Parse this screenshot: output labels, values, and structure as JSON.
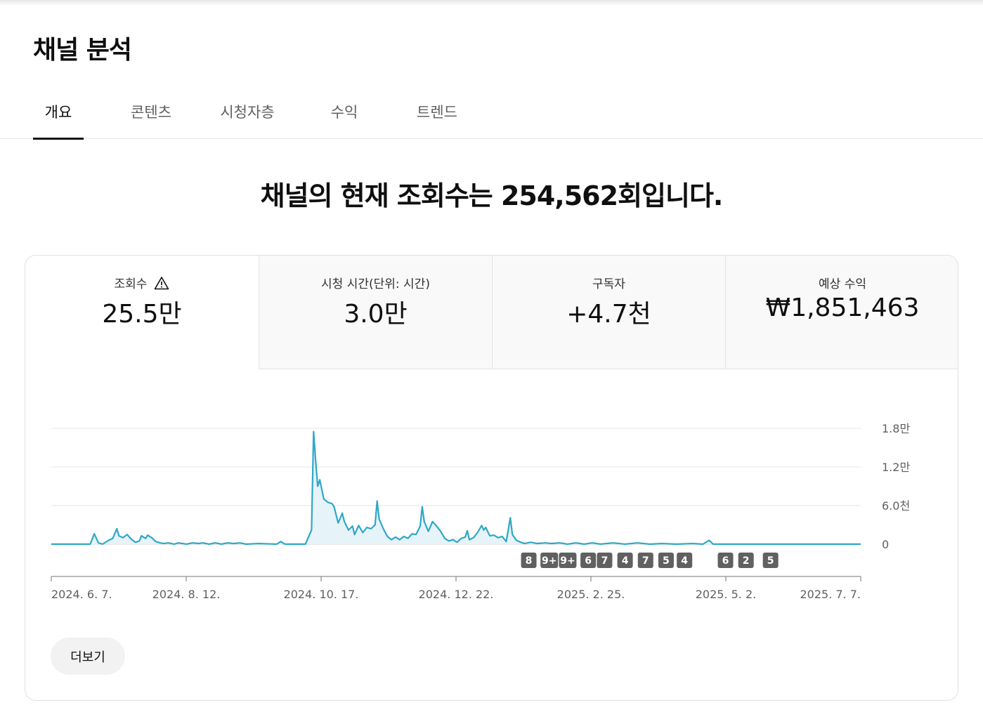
{
  "page_title": "채널 분석",
  "tabs": [
    {
      "label": "개요",
      "active": true
    },
    {
      "label": "콘텐츠",
      "active": false
    },
    {
      "label": "시청자층",
      "active": false
    },
    {
      "label": "수익",
      "active": false
    },
    {
      "label": "트렌드",
      "active": false
    }
  ],
  "headline": "채널의 현재 조회수는 254,562회입니다.",
  "metrics": [
    {
      "label": "조회수",
      "value": "25.5만",
      "icon": "warning-icon",
      "selected": true
    },
    {
      "label": "시청 시간(단위: 시간)",
      "value": "3.0만",
      "selected": false
    },
    {
      "label": "구독자",
      "value": "+4.7천",
      "selected": false
    },
    {
      "label": "예상 수익",
      "value": "₩1,851,463",
      "selected": false
    }
  ],
  "more_button": "더보기",
  "colors": {
    "line": "#2ea8c7",
    "fill": "#e6f3f9",
    "grid": "#e5e5e5",
    "badge": "#606060"
  },
  "chart_data": {
    "type": "area",
    "y_ticks": [
      {
        "value": 0,
        "label": "0"
      },
      {
        "value": 6000,
        "label": "6.0천"
      },
      {
        "value": 12000,
        "label": "1.2만"
      },
      {
        "value": 18000,
        "label": "1.8만"
      }
    ],
    "ylim": [
      0,
      18000
    ],
    "x_range": [
      "2024-06-07",
      "2025-07-07"
    ],
    "x_ticks": [
      "2024. 6. 7.",
      "2024. 8. 12.",
      "2024. 10. 17.",
      "2024. 12. 22.",
      "2025. 2. 25.",
      "2025. 5. 2.",
      "2025. 7. 7."
    ],
    "series": [
      {
        "points": [
          [
            "2024-06-07",
            0
          ],
          [
            "2024-06-26",
            0
          ],
          [
            "2024-06-28",
            1600
          ],
          [
            "2024-06-30",
            200
          ],
          [
            "2024-07-02",
            0
          ],
          [
            "2024-07-05",
            600
          ],
          [
            "2024-07-07",
            900
          ],
          [
            "2024-07-09",
            2400
          ],
          [
            "2024-07-10",
            1300
          ],
          [
            "2024-07-12",
            1000
          ],
          [
            "2024-07-14",
            1500
          ],
          [
            "2024-07-16",
            800
          ],
          [
            "2024-07-18",
            300
          ],
          [
            "2024-07-20",
            500
          ],
          [
            "2024-07-21",
            1300
          ],
          [
            "2024-07-23",
            900
          ],
          [
            "2024-07-24",
            1400
          ],
          [
            "2024-07-26",
            1000
          ],
          [
            "2024-07-28",
            400
          ],
          [
            "2024-07-30",
            200
          ],
          [
            "2024-08-01",
            100
          ],
          [
            "2024-08-03",
            200
          ],
          [
            "2024-08-06",
            0
          ],
          [
            "2024-08-08",
            200
          ],
          [
            "2024-08-12",
            0
          ],
          [
            "2024-08-15",
            200
          ],
          [
            "2024-08-18",
            100
          ],
          [
            "2024-08-20",
            200
          ],
          [
            "2024-08-23",
            0
          ],
          [
            "2024-08-26",
            200
          ],
          [
            "2024-08-29",
            0
          ],
          [
            "2024-09-01",
            200
          ],
          [
            "2024-09-04",
            100
          ],
          [
            "2024-09-07",
            200
          ],
          [
            "2024-09-10",
            0
          ],
          [
            "2024-09-16",
            100
          ],
          [
            "2024-09-25",
            0
          ],
          [
            "2024-09-27",
            400
          ],
          [
            "2024-09-29",
            0
          ],
          [
            "2024-10-09",
            0
          ],
          [
            "2024-10-12",
            2200
          ],
          [
            "2024-10-13",
            17500
          ],
          [
            "2024-10-14",
            13000
          ],
          [
            "2024-10-15",
            9000
          ],
          [
            "2024-10-16",
            10000
          ],
          [
            "2024-10-17",
            8500
          ],
          [
            "2024-10-18",
            7000
          ],
          [
            "2024-10-20",
            6500
          ],
          [
            "2024-10-22",
            6300
          ],
          [
            "2024-10-23",
            5800
          ],
          [
            "2024-10-25",
            3300
          ],
          [
            "2024-10-27",
            4800
          ],
          [
            "2024-10-28",
            3500
          ],
          [
            "2024-10-30",
            2200
          ],
          [
            "2024-11-01",
            2800
          ],
          [
            "2024-11-02",
            1500
          ],
          [
            "2024-11-04",
            2900
          ],
          [
            "2024-11-06",
            1800
          ],
          [
            "2024-11-08",
            2600
          ],
          [
            "2024-11-10",
            2400
          ],
          [
            "2024-11-12",
            3000
          ],
          [
            "2024-11-13",
            6700
          ],
          [
            "2024-11-14",
            3900
          ],
          [
            "2024-11-16",
            2400
          ],
          [
            "2024-11-18",
            1200
          ],
          [
            "2024-11-20",
            700
          ],
          [
            "2024-11-22",
            1100
          ],
          [
            "2024-11-24",
            700
          ],
          [
            "2024-11-26",
            1200
          ],
          [
            "2024-11-28",
            900
          ],
          [
            "2024-11-30",
            1600
          ],
          [
            "2024-12-02",
            1500
          ],
          [
            "2024-12-04",
            2800
          ],
          [
            "2024-12-05",
            5800
          ],
          [
            "2024-12-06",
            3500
          ],
          [
            "2024-12-08",
            2000
          ],
          [
            "2024-12-10",
            3500
          ],
          [
            "2024-12-12",
            2800
          ],
          [
            "2024-12-14",
            2000
          ],
          [
            "2024-12-16",
            900
          ],
          [
            "2024-12-18",
            500
          ],
          [
            "2024-12-20",
            700
          ],
          [
            "2024-12-22",
            300
          ],
          [
            "2024-12-24",
            900
          ],
          [
            "2024-12-26",
            1100
          ],
          [
            "2024-12-27",
            2100
          ],
          [
            "2024-12-28",
            700
          ],
          [
            "2024-12-30",
            1000
          ],
          [
            "2025-01-01",
            1800
          ],
          [
            "2025-01-03",
            2900
          ],
          [
            "2025-01-04",
            2200
          ],
          [
            "2025-01-05",
            2600
          ],
          [
            "2025-01-07",
            1300
          ],
          [
            "2025-01-09",
            1400
          ],
          [
            "2025-01-11",
            1000
          ],
          [
            "2025-01-13",
            1200
          ],
          [
            "2025-01-15",
            400
          ],
          [
            "2025-01-17",
            4100
          ],
          [
            "2025-01-18",
            1500
          ],
          [
            "2025-01-20",
            600
          ],
          [
            "2025-01-22",
            300
          ],
          [
            "2025-01-24",
            100
          ],
          [
            "2025-01-27",
            300
          ],
          [
            "2025-01-30",
            100
          ],
          [
            "2025-02-03",
            200
          ],
          [
            "2025-02-06",
            100
          ],
          [
            "2025-02-10",
            200
          ],
          [
            "2025-02-14",
            0
          ],
          [
            "2025-02-18",
            200
          ],
          [
            "2025-02-22",
            0
          ],
          [
            "2025-02-26",
            200
          ],
          [
            "2025-03-02",
            0
          ],
          [
            "2025-03-08",
            200
          ],
          [
            "2025-03-14",
            0
          ],
          [
            "2025-03-20",
            200
          ],
          [
            "2025-03-26",
            0
          ],
          [
            "2025-04-01",
            100
          ],
          [
            "2025-04-08",
            0
          ],
          [
            "2025-04-16",
            100
          ],
          [
            "2025-04-21",
            0
          ],
          [
            "2025-04-24",
            600
          ],
          [
            "2025-04-26",
            0
          ],
          [
            "2025-07-07",
            0
          ]
        ]
      }
    ],
    "annotations": [
      {
        "label": "8",
        "date": "2025-01-26"
      },
      {
        "label": "9+",
        "date": "2025-02-05"
      },
      {
        "label": "9+",
        "date": "2025-02-14"
      },
      {
        "label": "6",
        "date": "2025-02-24"
      },
      {
        "label": "7",
        "date": "2025-03-04"
      },
      {
        "label": "4",
        "date": "2025-03-14"
      },
      {
        "label": "7",
        "date": "2025-03-24"
      },
      {
        "label": "5",
        "date": "2025-04-03"
      },
      {
        "label": "4",
        "date": "2025-04-12"
      },
      {
        "label": "6",
        "date": "2025-05-02"
      },
      {
        "label": "2",
        "date": "2025-05-12"
      },
      {
        "label": "5",
        "date": "2025-05-24"
      }
    ]
  }
}
